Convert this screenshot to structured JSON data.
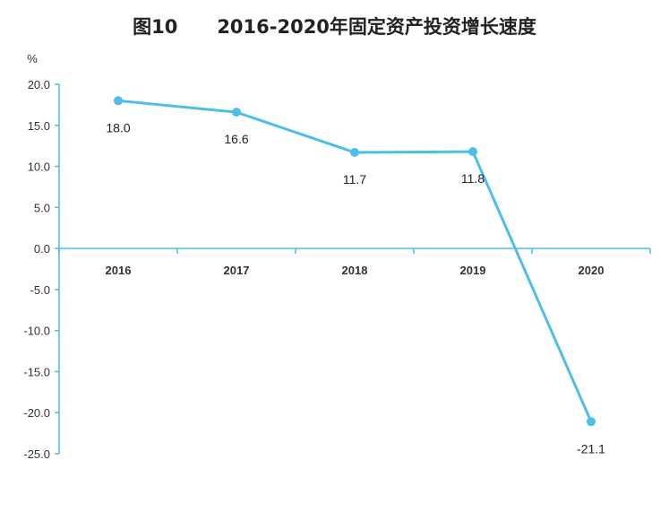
{
  "title": {
    "figure_number": "图10",
    "text": "2016-2020年固定资产投资增长速度"
  },
  "chart_data": {
    "type": "line",
    "title": "图10 2016-2020年固定资产投资增长速度",
    "ylabel": "%",
    "xlabel": "",
    "categories": [
      "2016",
      "2017",
      "2018",
      "2019",
      "2020"
    ],
    "series": [
      {
        "values": [
          18.0,
          16.6,
          11.7,
          11.8,
          -21.1
        ],
        "color": "#4dbdea"
      }
    ],
    "data_labels": [
      "18.0",
      "16.6",
      "11.7",
      "11.8",
      "-21.1"
    ],
    "ylim": [
      -25.0,
      20.0
    ],
    "yticks": [
      20.0,
      15.0,
      10.0,
      5.0,
      0.0,
      -5.0,
      -10.0,
      -15.0,
      -20.0,
      -25.0
    ],
    "ytick_labels": [
      "20.0",
      "15.0",
      "10.0",
      "5.0",
      "0.0",
      "-5.0",
      "-10.0",
      "-15.0",
      "-20.0",
      "-25.0"
    ],
    "grid": false,
    "legend": "none",
    "axis_color": "#4dbdea"
  }
}
